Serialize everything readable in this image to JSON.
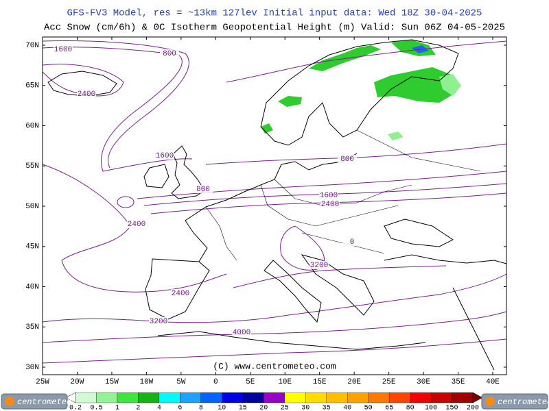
{
  "header": {
    "line1": "GFS-FV3 Model, res = ~13km 127lev    Initial input data: Wed 18Z 30-04-2025",
    "line2": "Acc Snow (cm/6h) & 0C Isotherm Geopotential Height (m)  Valid: Sun 06Z 04-05-2025"
  },
  "map": {
    "lon_labels": [
      "25W",
      "20W",
      "15W",
      "10W",
      "5W",
      "0",
      "5E",
      "10E",
      "15E",
      "20E",
      "25E",
      "30E",
      "35E",
      "40E"
    ],
    "lat_labels": [
      "70N",
      "65N",
      "60N",
      "55N",
      "50N",
      "45N",
      "40N",
      "35N",
      "30N"
    ],
    "contour_labels": [
      1600,
      800,
      2400,
      1600,
      800,
      800,
      1600,
      2400,
      2400,
      0,
      3200,
      2400,
      3200,
      4000
    ],
    "copyright": "(C) www.centrometeo.com"
  },
  "colorbar": {
    "labels": [
      0.2,
      0.5,
      1,
      2,
      4,
      6,
      8,
      10,
      15,
      20,
      25,
      30,
      35,
      40,
      50,
      65,
      80,
      100,
      150,
      200
    ],
    "colors": [
      "#ffffff",
      "#d2fad2",
      "#96f096",
      "#3ce63c",
      "#14b414",
      "#00fafa",
      "#1ea0ff",
      "#0064ff",
      "#0000e6",
      "#0000a0",
      "#9600c8",
      "#ffff00",
      "#ffdc00",
      "#ffbe00",
      "#ffa000",
      "#ff7800",
      "#ff4600",
      "#f00000",
      "#c80000",
      "#a00000",
      "#780000"
    ]
  },
  "logos": {
    "left": "centrometeo",
    "right": "centrometeo"
  }
}
